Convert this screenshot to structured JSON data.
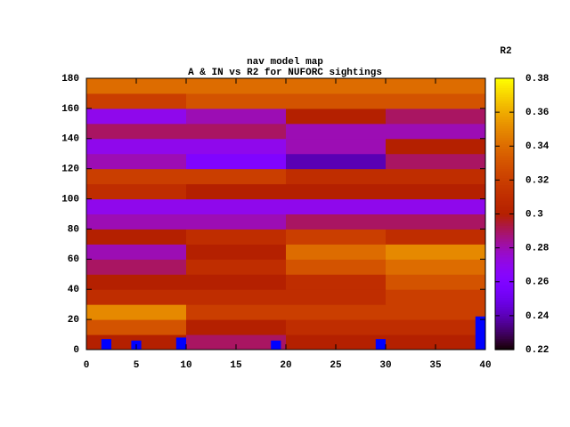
{
  "chart_data": {
    "type": "heatmap",
    "title": "nav model map",
    "subtitle": "A & IN vs R2 for NUFORC sightings",
    "colorbar_label": "R2",
    "xbins": [
      0,
      10,
      20,
      30,
      40
    ],
    "ybins": [
      0,
      10,
      20,
      30,
      40,
      50,
      60,
      70,
      80,
      90,
      100,
      110,
      120,
      130,
      140,
      150,
      160,
      170,
      180
    ],
    "z": [
      [
        0.3,
        0.29,
        0.3,
        0.3
      ],
      [
        0.33,
        0.3,
        0.31,
        0.31
      ],
      [
        0.35,
        0.32,
        0.32,
        0.32
      ],
      [
        0.31,
        0.31,
        0.31,
        0.32
      ],
      [
        0.3,
        0.3,
        0.31,
        0.33
      ],
      [
        0.29,
        0.31,
        0.33,
        0.34
      ],
      [
        0.28,
        0.3,
        0.34,
        0.35
      ],
      [
        0.3,
        0.31,
        0.32,
        0.31
      ],
      [
        0.28,
        0.28,
        0.29,
        0.29
      ],
      [
        0.27,
        0.27,
        0.27,
        0.27
      ],
      [
        0.31,
        0.3,
        0.3,
        0.3
      ],
      [
        0.32,
        0.32,
        0.31,
        0.31
      ],
      [
        0.28,
        0.26,
        0.24,
        0.29
      ],
      [
        0.27,
        0.27,
        0.28,
        0.3
      ],
      [
        0.29,
        0.29,
        0.28,
        0.28
      ],
      [
        0.27,
        0.28,
        0.3,
        0.29
      ],
      [
        0.32,
        0.33,
        0.33,
        0.33
      ],
      [
        0.34,
        0.34,
        0.34,
        0.34
      ]
    ],
    "bars": {
      "x": [
        2,
        5,
        9.5,
        19,
        29.5,
        39.7
      ],
      "values": [
        7,
        6,
        8,
        6,
        7,
        22
      ],
      "color": "#0000ff"
    },
    "xlim": [
      0,
      40
    ],
    "xticks": [
      0,
      5,
      10,
      15,
      20,
      25,
      30,
      35,
      40
    ],
    "ylim": [
      0,
      180
    ],
    "yticks": [
      0,
      20,
      40,
      60,
      80,
      100,
      120,
      140,
      160,
      180
    ],
    "zlim": [
      0.22,
      0.38
    ],
    "zticks": [
      0.22,
      0.24,
      0.26,
      0.28,
      0.3,
      0.32,
      0.34,
      0.36,
      0.38
    ]
  }
}
